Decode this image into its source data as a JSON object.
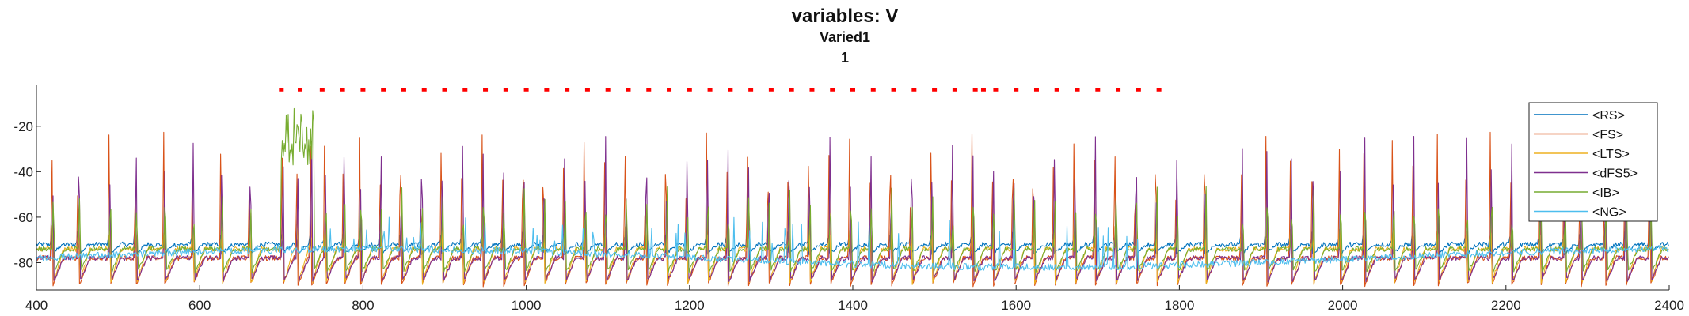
{
  "chart_data": {
    "type": "line",
    "title": "variables: V",
    "subtitle": "Varied1",
    "subtitle2": "1",
    "xlabel": "",
    "ylabel": "",
    "xlim": [
      400,
      2400
    ],
    "ylim": [
      -92,
      -2
    ],
    "xticks": [
      400,
      600,
      800,
      1000,
      1200,
      1400,
      1600,
      1800,
      2000,
      2200,
      2400
    ],
    "yticks": [
      -20,
      -40,
      -60,
      -80
    ],
    "grid": false,
    "legend_position": "top-right",
    "series": [
      {
        "name": "<RS>",
        "color": "#0072BD",
        "baseline": -72,
        "spike_height": 6,
        "trough": -76
      },
      {
        "name": "<FS>",
        "color": "#D95319",
        "baseline": -78,
        "spike_height": 60,
        "trough": -90
      },
      {
        "name": "<LTS>",
        "color": "#EDB120",
        "baseline": -74,
        "spike_height": 14,
        "trough": -89
      },
      {
        "name": "<dFS5>",
        "color": "#7E2F8E",
        "baseline": -78,
        "spike_height": 58,
        "trough": -88
      },
      {
        "name": "<IB>",
        "color": "#77AC30",
        "baseline": -74,
        "spike_height": 30,
        "trough": -84
      },
      {
        "name": "<NG>",
        "color": "#4DBEEE",
        "baseline": -78,
        "spike_height": 12,
        "trough": -82
      }
    ],
    "spike_times": [
      418,
      450,
      488,
      520,
      555,
      590,
      625,
      660,
      700,
      718,
      735,
      752,
      775,
      795,
      820,
      845,
      870,
      895,
      920,
      945,
      970,
      995,
      1020,
      1045,
      1070,
      1095,
      1120,
      1145,
      1170,
      1195,
      1220,
      1245,
      1270,
      1295,
      1320,
      1345,
      1370,
      1395,
      1420,
      1445,
      1470,
      1495,
      1520,
      1545,
      1570,
      1595,
      1620,
      1645,
      1670,
      1695,
      1720,
      1745,
      1770,
      1795,
      1830,
      1875,
      1905,
      1935,
      1962,
      1995,
      2025,
      2060,
      2085,
      2115,
      2150,
      2180,
      2205,
      2240,
      2270,
      2290,
      2320,
      2345,
      2375
    ],
    "ib_burst": {
      "x_start": 700,
      "x_end": 740,
      "max": -17
    },
    "stimulus_markers": {
      "color": "#FF0000",
      "y": -4,
      "x": [
        700,
        723,
        750,
        775,
        800,
        825,
        850,
        875,
        900,
        925,
        950,
        975,
        1000,
        1025,
        1050,
        1075,
        1100,
        1125,
        1150,
        1175,
        1200,
        1225,
        1250,
        1275,
        1300,
        1325,
        1350,
        1375,
        1400,
        1425,
        1450,
        1475,
        1500,
        1525,
        1550,
        1560,
        1575,
        1600,
        1625,
        1650,
        1675,
        1700,
        1725,
        1750,
        1775
      ]
    }
  }
}
